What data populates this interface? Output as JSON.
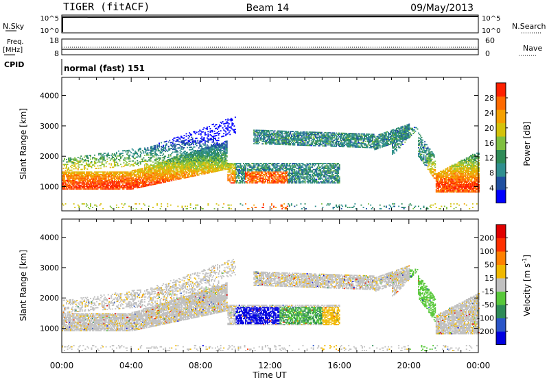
{
  "header": {
    "station": "TIGER (fitACF)",
    "beam": "Beam 14",
    "date": "09/May/2013"
  },
  "nsky_panel": {
    "left_label": "N.Sky",
    "left_ticks": [
      "10^5",
      "10^0"
    ],
    "right_ticks": [
      "10^5",
      "10^0"
    ],
    "right_label": "N.Search"
  },
  "freq_panel": {
    "left_label": [
      "Freq.",
      "[MHz]"
    ],
    "left_ticks": [
      "18",
      "8"
    ],
    "right_ticks": [
      "60",
      "0"
    ],
    "right_label": "Nave"
  },
  "cpid_panel": {
    "left_label": "CPID",
    "mode_text": "normal (fast) 151"
  },
  "chart_data": [
    {
      "type": "heatmap",
      "name": "power",
      "ylabel": "Slant Range [km]",
      "ylim": [
        200,
        4600
      ],
      "yticks": [
        1000,
        2000,
        3000,
        4000
      ],
      "xlim": [
        0,
        24
      ],
      "xticks": [
        "00:00",
        "04:00",
        "08:00",
        "12:00",
        "16:00",
        "20:00",
        "00:00"
      ],
      "colorbar": {
        "label": "Power [dB]",
        "range": [
          0,
          32
        ],
        "ticks": [
          "28",
          "24",
          "20",
          "16",
          "12",
          "8",
          "4"
        ],
        "colors": [
          "#0000ff",
          "#1f4fa0",
          "#2f8f8f",
          "#2e8b57",
          "#7fbf3f",
          "#d4c20a",
          "#f5a000",
          "#ff6a00",
          "#ff2000"
        ]
      }
    },
    {
      "type": "heatmap",
      "name": "velocity",
      "ylabel": "Slant Range [km]",
      "ylim": [
        200,
        4600
      ],
      "yticks": [
        1000,
        2000,
        3000,
        4000
      ],
      "xlim": [
        0,
        24
      ],
      "xticks": [
        "00:00",
        "04:00",
        "08:00",
        "12:00",
        "16:00",
        "20:00",
        "00:00"
      ],
      "xlabel": "Time UT",
      "colorbar": {
        "label": "Velocity [m s",
        "label_sup": "-1",
        "ticks": [
          "200",
          "100",
          "50",
          "15",
          "-15",
          "-50",
          "-100",
          "-200"
        ],
        "colors": [
          "#0000e0",
          "#2a55c8",
          "#2e8b57",
          "#58c83a",
          "#c0c0c0",
          "#f0b800",
          "#ff8000",
          "#ff3000",
          "#e00000"
        ]
      }
    }
  ]
}
